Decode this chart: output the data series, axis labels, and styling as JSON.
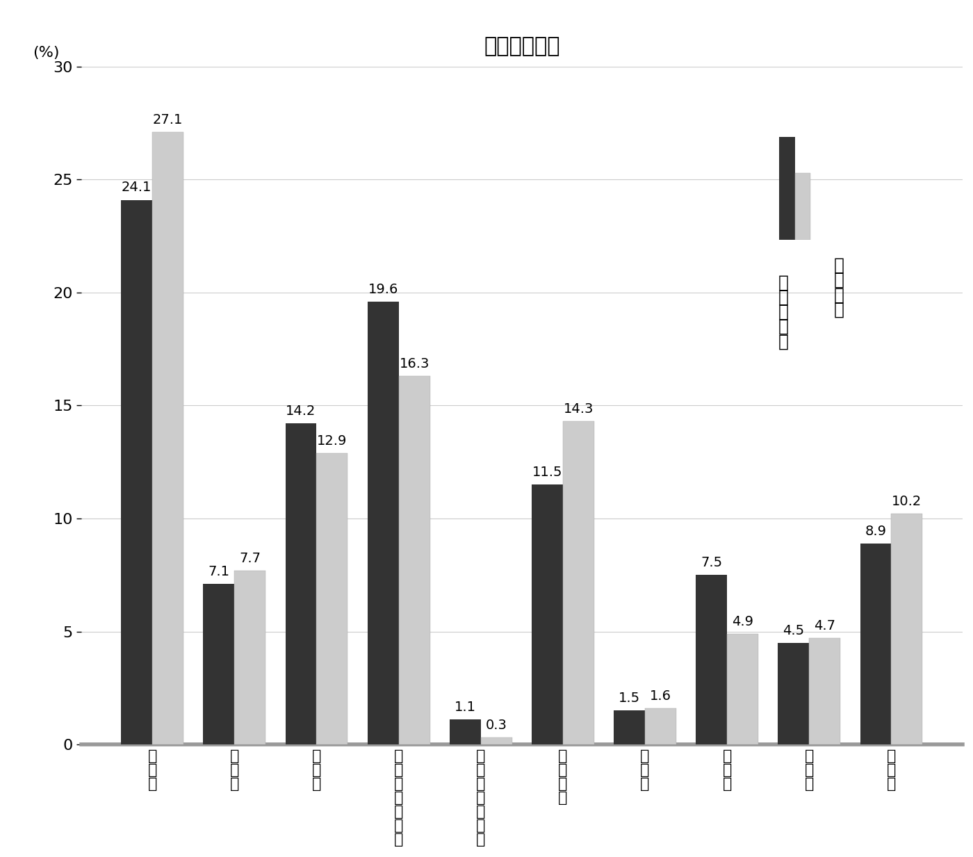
{
  "title": "その２　歳出",
  "ylabel": "(%)",
  "categories": [
    "人件費",
    "扶助費",
    "公債費",
    "普通建設\n事業費",
    "災害復旧\n事業費",
    "補助費等",
    "積立金",
    "貸付金",
    "繰出金",
    "その他"
  ],
  "main_values": [
    24.1,
    7.1,
    14.2,
    19.6,
    1.1,
    11.5,
    1.5,
    7.5,
    4.5,
    8.9
  ],
  "other_values": [
    27.1,
    7.7,
    12.9,
    16.3,
    0.3,
    14.3,
    1.6,
    4.9,
    4.7,
    10.2
  ],
  "main_color": "#333333",
  "other_color": "#cccccc",
  "ylim": [
    0,
    30
  ],
  "yticks": [
    0,
    5,
    10,
    15,
    20,
    25,
    30
  ],
  "legend_label1": "主な被災地",
  "legend_label2": "それ以外",
  "bar_width": 0.38,
  "title_fontsize": 22,
  "label_fontsize": 16,
  "tick_fontsize": 16,
  "value_fontsize": 14,
  "legend_fontsize": 18
}
